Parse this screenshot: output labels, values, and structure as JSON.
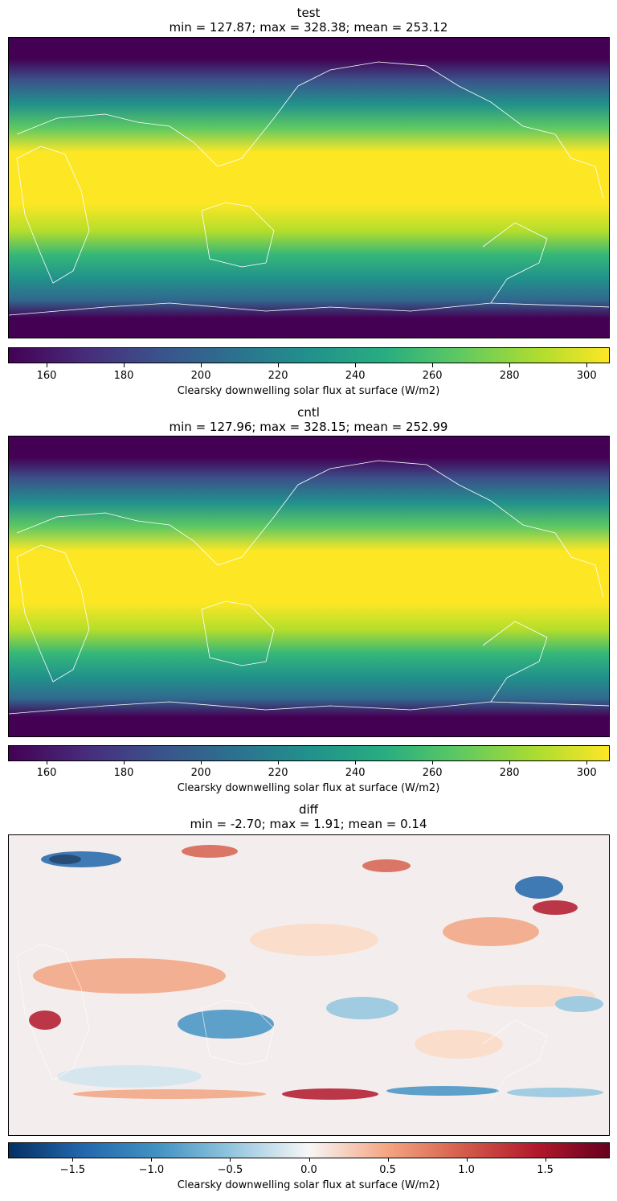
{
  "chart_data": [
    {
      "type": "heatmap",
      "title": "test",
      "subtitle": "min = 127.87; max = 328.38; mean = 253.12",
      "colormap": "viridis",
      "colorbar": {
        "label": "Clearsky downwelling solar flux at surface (W/m2)",
        "range": [
          150,
          306
        ],
        "ticks": [
          160,
          180,
          200,
          220,
          240,
          260,
          280,
          300
        ],
        "tick_labels": [
          "160",
          "180",
          "200",
          "220",
          "240",
          "260",
          "280",
          "300"
        ]
      }
    },
    {
      "type": "heatmap",
      "title": "cntl",
      "subtitle": "min = 127.96; max = 328.15; mean = 252.99",
      "colormap": "viridis",
      "colorbar": {
        "label": "Clearsky downwelling solar flux at surface (W/m2)",
        "range": [
          150,
          306
        ],
        "ticks": [
          160,
          180,
          200,
          220,
          240,
          260,
          280,
          300
        ],
        "tick_labels": [
          "160",
          "180",
          "200",
          "220",
          "240",
          "260",
          "280",
          "300"
        ]
      }
    },
    {
      "type": "heatmap",
      "title": "diff",
      "subtitle": "min = -2.70; max = 1.91; mean = 0.14",
      "colormap": "RdBu_r",
      "colorbar": {
        "label": "Clearsky downwelling solar flux at surface (W/m2)",
        "range": [
          -1.91,
          1.91
        ],
        "ticks": [
          -1.5,
          -1.0,
          -0.5,
          0.0,
          0.5,
          1.0,
          1.5
        ],
        "tick_labels": [
          "−1.5",
          "−1.0",
          "−0.5",
          "0.0",
          "0.5",
          "1.0",
          "1.5"
        ]
      }
    }
  ]
}
